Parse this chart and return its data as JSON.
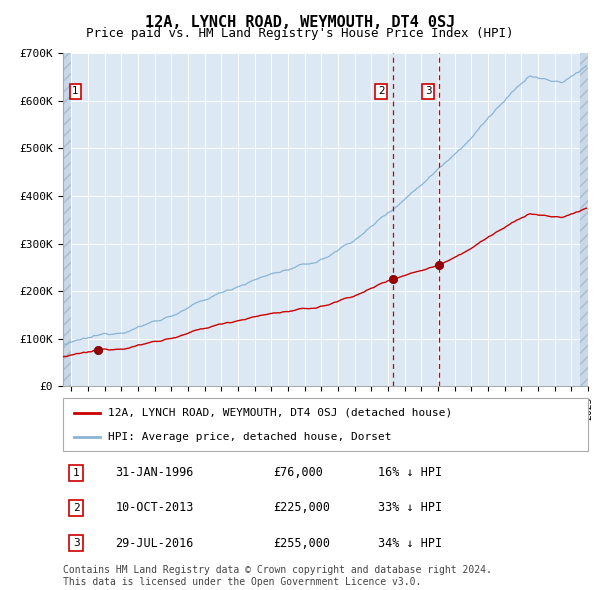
{
  "title": "12A, LYNCH ROAD, WEYMOUTH, DT4 0SJ",
  "subtitle": "Price paid vs. HM Land Registry's House Price Index (HPI)",
  "title_fontsize": 11,
  "subtitle_fontsize": 9,
  "plot_bg_color": "#dce9f5",
  "grid_color": "#ffffff",
  "red_line_color": "#cc0000",
  "blue_line_color": "#8ab4d4",
  "ylim": [
    0,
    700000
  ],
  "yticks": [
    0,
    100000,
    200000,
    300000,
    400000,
    500000,
    600000,
    700000
  ],
  "ytick_labels": [
    "£0",
    "£100K",
    "£200K",
    "£300K",
    "£400K",
    "£500K",
    "£600K",
    "£700K"
  ],
  "xmin": 1994.0,
  "xmax": 2025.5,
  "sales": [
    {
      "label": "1",
      "date": "31-JAN-1996",
      "date_x": 1996.08,
      "price": 76000,
      "pct": "16%",
      "dir": "↓"
    },
    {
      "label": "2",
      "date": "10-OCT-2013",
      "date_x": 2013.77,
      "price": 225000,
      "pct": "33%",
      "dir": "↓"
    },
    {
      "label": "3",
      "date": "29-JUL-2016",
      "date_x": 2016.57,
      "price": 255000,
      "pct": "34%",
      "dir": "↓"
    }
  ],
  "legend_entries": [
    "12A, LYNCH ROAD, WEYMOUTH, DT4 0SJ (detached house)",
    "HPI: Average price, detached house, Dorset"
  ],
  "footer": "Contains HM Land Registry data © Crown copyright and database right 2024.\nThis data is licensed under the Open Government Licence v3.0.",
  "footer_fontsize": 7
}
